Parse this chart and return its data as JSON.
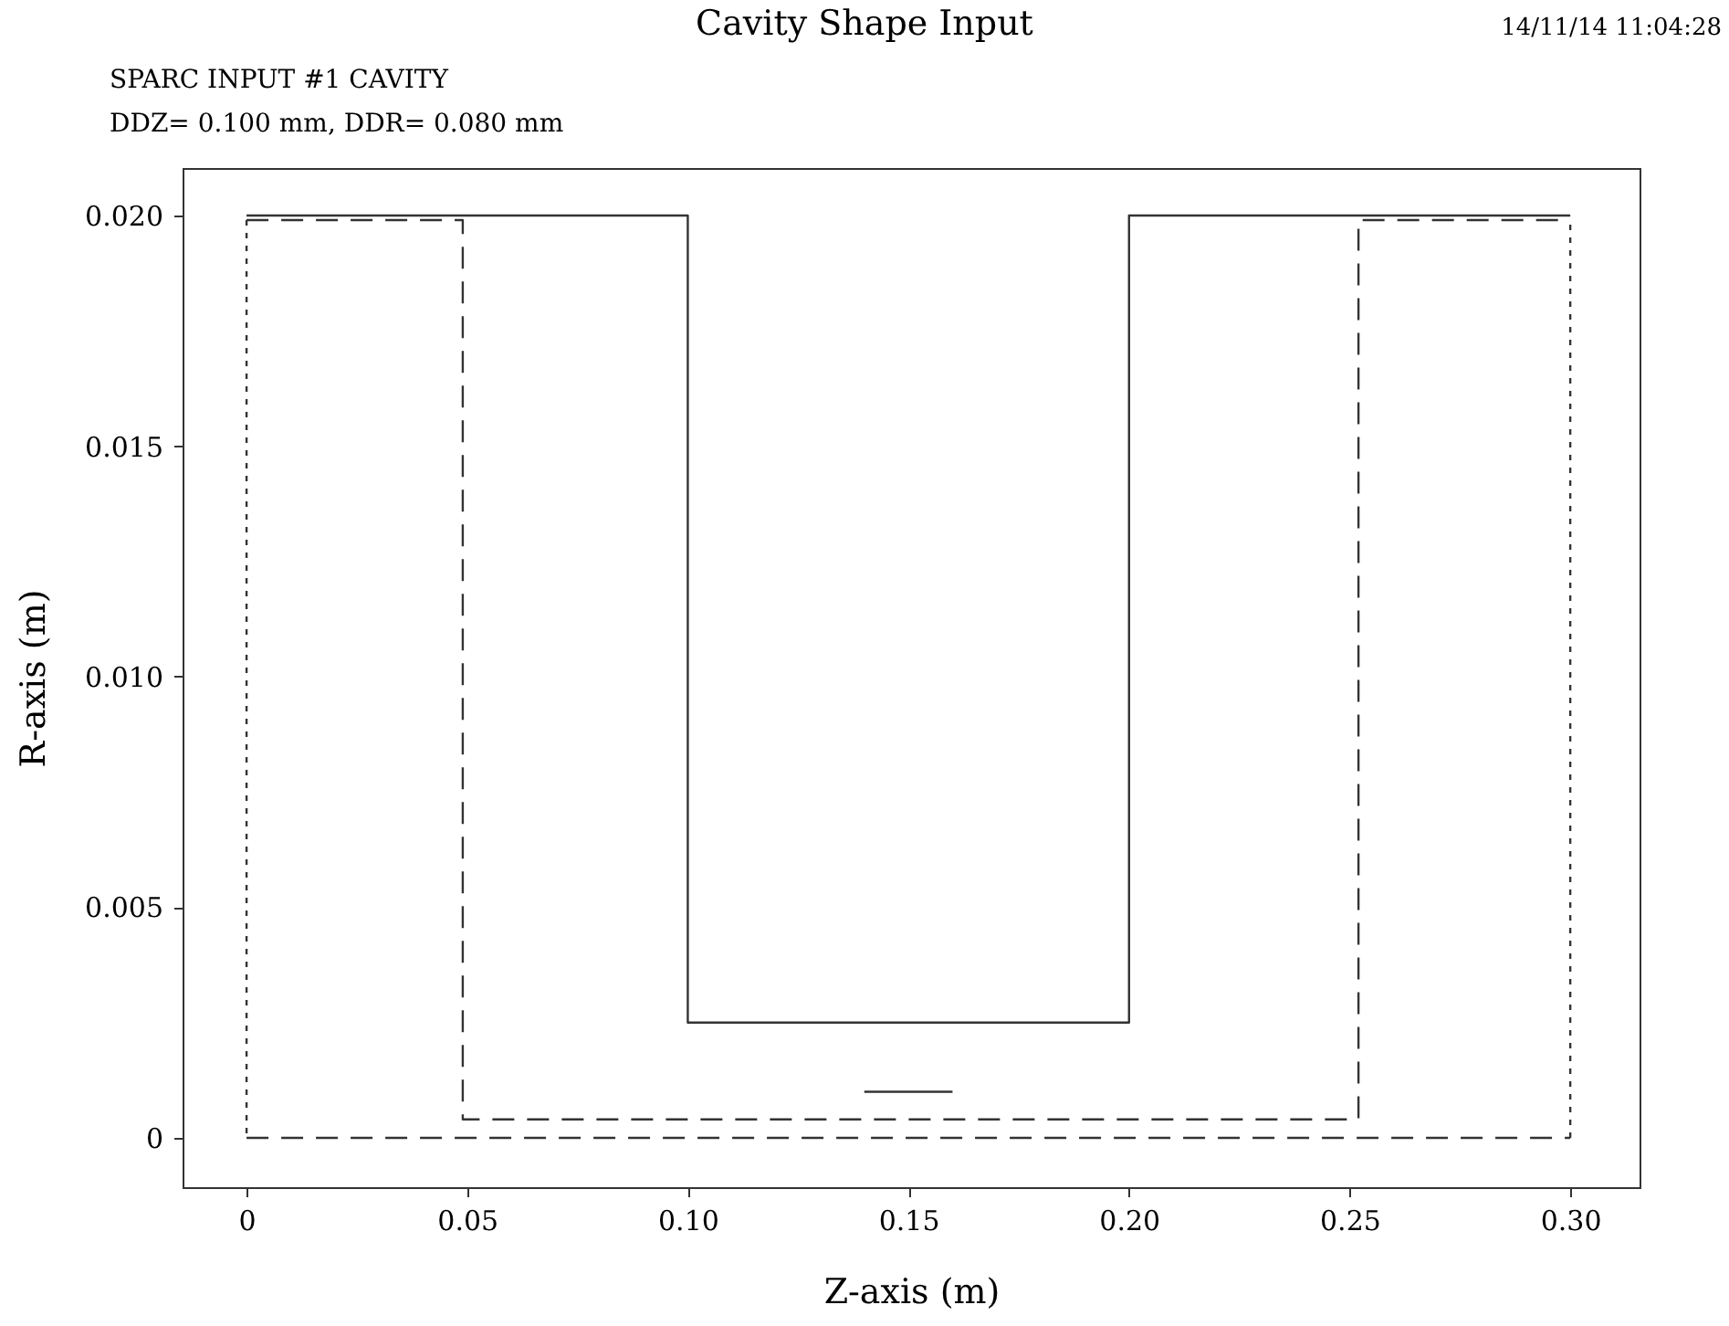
{
  "chart_data": {
    "type": "line",
    "title": "Cavity Shape Input",
    "subtitle": "SPARC INPUT #1 CAVITY",
    "annotations": [
      "DDZ= 0.100 mm,  DDR= 0.080 mm",
      "14/11/14  11:04:28"
    ],
    "xlabel": "Z-axis (m)",
    "ylabel": "R-axis (m)",
    "xlim": [
      -0.0145,
      0.3157
    ],
    "ylim": [
      -0.00107,
      0.02103
    ],
    "xticks": [
      0,
      {
        "value": 0.05,
        "label": "0.05"
      },
      {
        "value": 0.1,
        "label": "0.10"
      },
      {
        "value": 0.15,
        "label": "0.15"
      },
      {
        "value": 0.2,
        "label": "0.20"
      },
      {
        "value": 0.25,
        "label": "0.25"
      },
      {
        "value": 0.3,
        "label": "0.30"
      }
    ],
    "yticks": [
      0,
      0.005,
      {
        "value": 0.01,
        "label": "0.010"
      },
      0.015,
      {
        "value": 0.02,
        "label": "0.020"
      }
    ],
    "grid": false,
    "marker": "none",
    "series": [
      {
        "color": "#333333",
        "line_style": "solid",
        "x": [
          0,
          0.1,
          0.1,
          0.2,
          0.2,
          0.3
        ],
        "values": [
          0.02,
          0.02,
          0.0025,
          0.0025,
          0.02,
          0.02
        ]
      },
      {
        "color": "#333333",
        "line_style": "dashed",
        "x": [
          0,
          0.049,
          0.049,
          0.252,
          0.252,
          0.3
        ],
        "values": [
          0.0199,
          0.0199,
          0.0004,
          0.0004,
          0.0199,
          0.0199
        ]
      },
      {
        "color": "#333333",
        "line_style": "dotted",
        "x": [
          0,
          0
        ],
        "values": [
          0.0199,
          0
        ]
      },
      {
        "color": "#333333",
        "line_style": "dotted",
        "x": [
          0.3,
          0.3
        ],
        "values": [
          0,
          0.0199
        ]
      },
      {
        "color": "#333333",
        "line_style": "dashed",
        "x": [
          0,
          0.3
        ],
        "values": [
          0,
          0
        ]
      },
      {
        "color": "#333333",
        "line_style": "solid",
        "x": [
          0.14,
          0.16
        ],
        "values": [
          0.001,
          0.001
        ]
      }
    ]
  }
}
